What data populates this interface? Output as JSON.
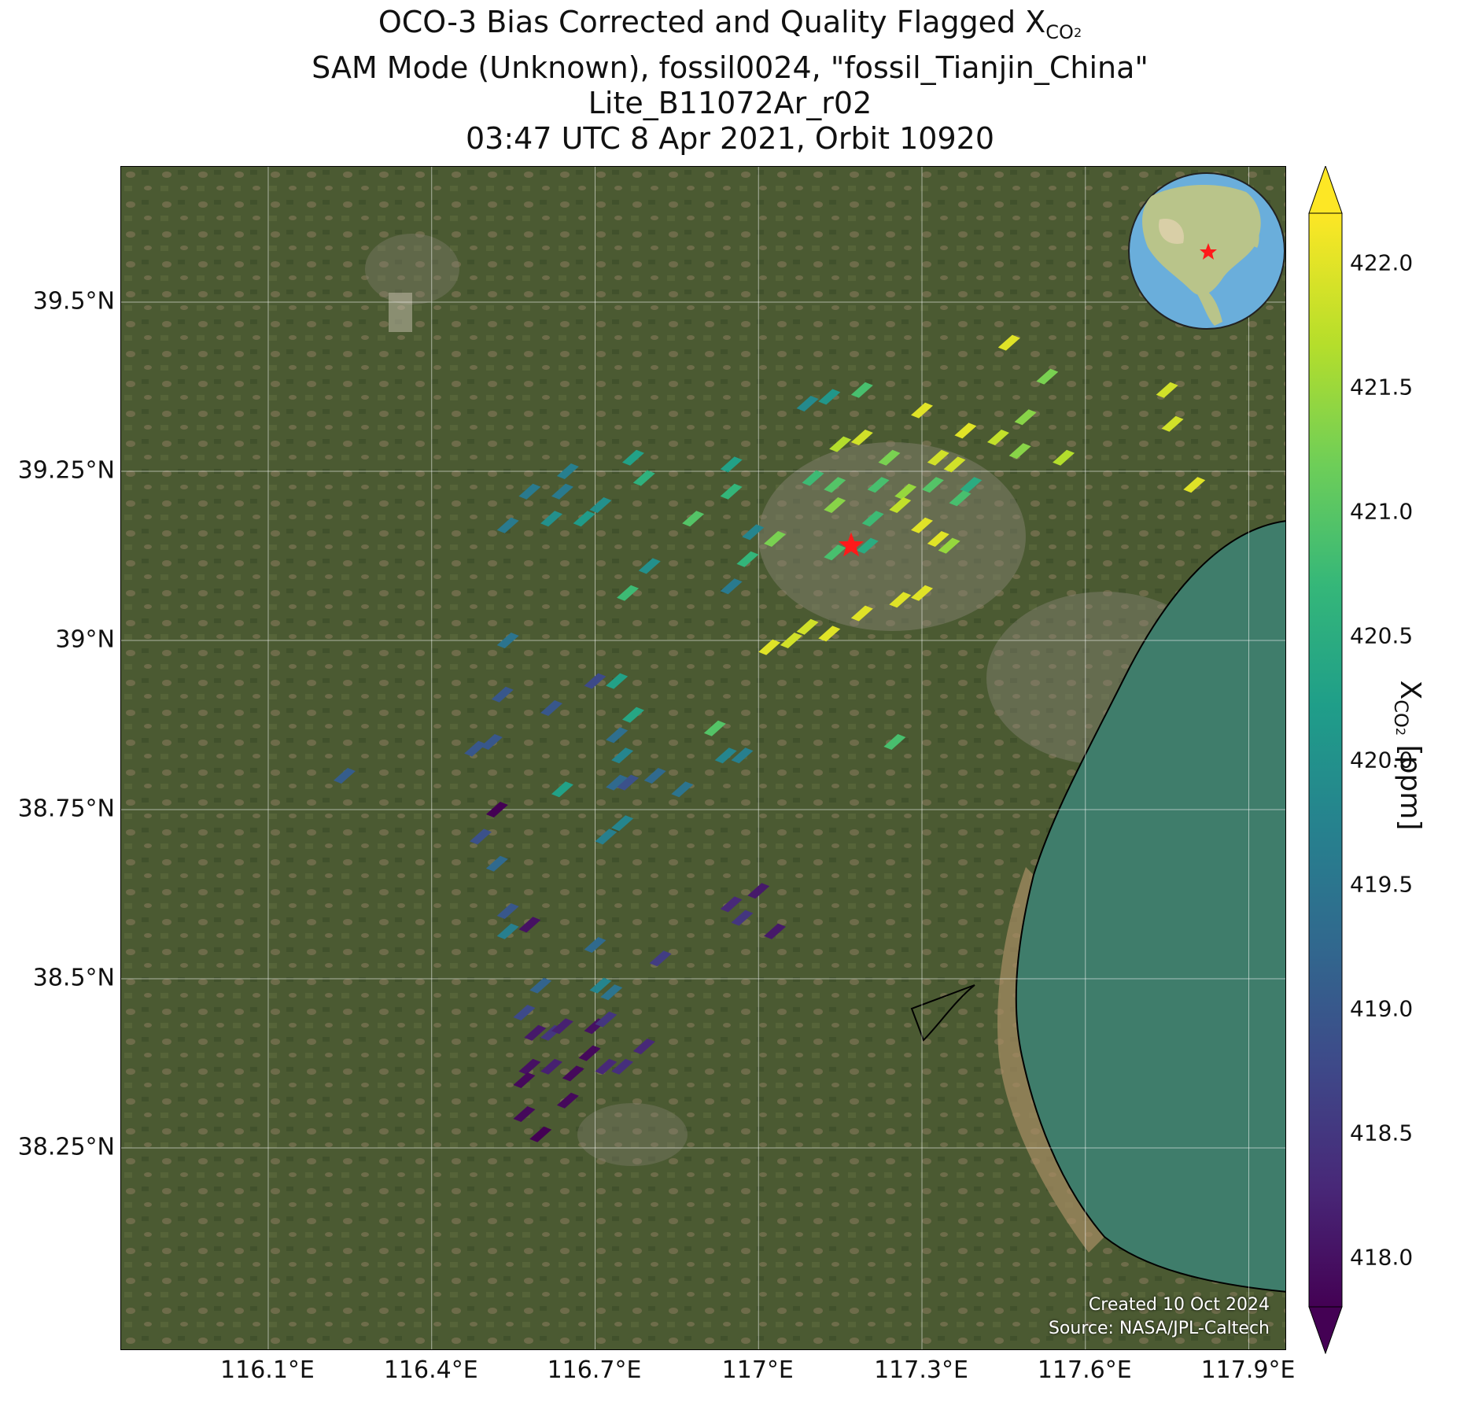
{
  "title": {
    "line1_prefix": "OCO-3 Bias Corrected and Quality Flagged X",
    "line1_sub": "CO",
    "line1_sub2": "2",
    "line2": "SAM Mode (Unknown), fossil0024, \"fossil_Tianjin_China\"",
    "line3": "Lite_B11072Ar_r02",
    "line4": "03:47 UTC 8 Apr 2021, Orbit 10920"
  },
  "map": {
    "lat_ticks": [
      "39.5°N",
      "39.25°N",
      "39°N",
      "38.75°N",
      "38.5°N",
      "38.25°N"
    ],
    "lon_ticks": [
      "116.1°E",
      "116.4°E",
      "116.7°E",
      "117°E",
      "117.3°E",
      "117.6°E",
      "117.9°E"
    ],
    "lat_tick_values": [
      39.5,
      39.25,
      39.0,
      38.75,
      38.5,
      38.25
    ],
    "lon_tick_values": [
      116.1,
      116.4,
      116.7,
      117.0,
      117.3,
      117.6,
      117.9
    ],
    "extent": {
      "lon_min": 115.83,
      "lon_max": 117.97,
      "lat_min": 37.95,
      "lat_max": 39.7
    },
    "target_marker": {
      "lon": 117.17,
      "lat": 39.14,
      "color": "#ff1a1a",
      "icon": "star-icon"
    },
    "credit_line1": "Created 10 Oct 2024",
    "credit_line2": "Source: NASA/JPL-Caltech",
    "background": "satellite imagery (land #4a5a33, sea #3f7d6b)"
  },
  "colorbar": {
    "label_prefix": "X",
    "label_sub": "CO",
    "label_sub2": "2",
    "label_suffix": " [ppm]",
    "colormap": "viridis",
    "vmin": 417.8,
    "vmax": 422.2,
    "extend": "both",
    "ticks": [
      "418.0",
      "418.5",
      "419.0",
      "419.5",
      "420.0",
      "420.5",
      "421.0",
      "421.5",
      "422.0"
    ],
    "tick_values": [
      418.0,
      418.5,
      419.0,
      419.5,
      420.0,
      420.5,
      421.0,
      421.5,
      422.0
    ]
  },
  "chart_data": {
    "type": "scatter",
    "title": "OCO-3 Bias Corrected and Quality Flagged XCO2",
    "xlabel": "",
    "ylabel": "",
    "colorbar_label": "XCO2 [ppm]",
    "points": [
      {
        "lon": 117.46,
        "lat": 39.44,
        "xco2": 422.0
      },
      {
        "lon": 117.53,
        "lat": 39.39,
        "xco2": 421.3
      },
      {
        "lon": 117.3,
        "lat": 39.34,
        "xco2": 422.0
      },
      {
        "lon": 117.49,
        "lat": 39.33,
        "xco2": 421.4
      },
      {
        "lon": 117.75,
        "lat": 39.37,
        "xco2": 421.9
      },
      {
        "lon": 117.19,
        "lat": 39.37,
        "xco2": 420.9
      },
      {
        "lon": 117.13,
        "lat": 39.36,
        "xco2": 420.1
      },
      {
        "lon": 117.09,
        "lat": 39.35,
        "xco2": 419.9
      },
      {
        "lon": 117.38,
        "lat": 39.31,
        "xco2": 422.0
      },
      {
        "lon": 117.44,
        "lat": 39.3,
        "xco2": 421.8
      },
      {
        "lon": 117.48,
        "lat": 39.28,
        "xco2": 421.4
      },
      {
        "lon": 117.56,
        "lat": 39.27,
        "xco2": 421.7
      },
      {
        "lon": 117.76,
        "lat": 39.32,
        "xco2": 421.9
      },
      {
        "lon": 117.8,
        "lat": 39.23,
        "xco2": 422.0
      },
      {
        "lon": 117.15,
        "lat": 39.29,
        "xco2": 421.7
      },
      {
        "lon": 117.19,
        "lat": 39.3,
        "xco2": 421.9
      },
      {
        "lon": 117.24,
        "lat": 39.27,
        "xco2": 421.3
      },
      {
        "lon": 117.33,
        "lat": 39.27,
        "xco2": 421.9
      },
      {
        "lon": 117.36,
        "lat": 39.26,
        "xco2": 421.9
      },
      {
        "lon": 117.39,
        "lat": 39.23,
        "xco2": 420.5
      },
      {
        "lon": 117.37,
        "lat": 39.21,
        "xco2": 420.9
      },
      {
        "lon": 117.32,
        "lat": 39.23,
        "xco2": 421.0
      },
      {
        "lon": 117.27,
        "lat": 39.22,
        "xco2": 421.5
      },
      {
        "lon": 117.22,
        "lat": 39.23,
        "xco2": 420.9
      },
      {
        "lon": 117.14,
        "lat": 39.23,
        "xco2": 421.0
      },
      {
        "lon": 117.1,
        "lat": 39.24,
        "xco2": 420.8
      },
      {
        "lon": 117.14,
        "lat": 39.2,
        "xco2": 421.4
      },
      {
        "lon": 117.21,
        "lat": 39.18,
        "xco2": 420.8
      },
      {
        "lon": 117.26,
        "lat": 39.2,
        "xco2": 421.8
      },
      {
        "lon": 117.3,
        "lat": 39.17,
        "xco2": 422.0
      },
      {
        "lon": 117.33,
        "lat": 39.15,
        "xco2": 422.0
      },
      {
        "lon": 117.35,
        "lat": 39.14,
        "xco2": 421.5
      },
      {
        "lon": 117.2,
        "lat": 39.14,
        "xco2": 420.5
      },
      {
        "lon": 117.14,
        "lat": 39.13,
        "xco2": 420.9
      },
      {
        "lon": 117.03,
        "lat": 39.15,
        "xco2": 421.3
      },
      {
        "lon": 116.99,
        "lat": 39.16,
        "xco2": 419.8
      },
      {
        "lon": 116.98,
        "lat": 39.12,
        "xco2": 420.7
      },
      {
        "lon": 116.95,
        "lat": 39.08,
        "xco2": 419.6
      },
      {
        "lon": 116.95,
        "lat": 39.26,
        "xco2": 420.3
      },
      {
        "lon": 116.95,
        "lat": 39.22,
        "xco2": 420.7
      },
      {
        "lon": 116.88,
        "lat": 39.18,
        "xco2": 421.0
      },
      {
        "lon": 116.77,
        "lat": 39.27,
        "xco2": 420.3
      },
      {
        "lon": 116.79,
        "lat": 39.24,
        "xco2": 420.6
      },
      {
        "lon": 116.64,
        "lat": 39.22,
        "xco2": 419.6
      },
      {
        "lon": 116.58,
        "lat": 39.22,
        "xco2": 419.6
      },
      {
        "lon": 116.65,
        "lat": 39.25,
        "xco2": 419.7
      },
      {
        "lon": 116.71,
        "lat": 39.2,
        "xco2": 420.0
      },
      {
        "lon": 116.68,
        "lat": 39.18,
        "xco2": 420.2
      },
      {
        "lon": 116.62,
        "lat": 39.18,
        "xco2": 420.0
      },
      {
        "lon": 116.54,
        "lat": 39.17,
        "xco2": 419.6
      },
      {
        "lon": 116.8,
        "lat": 39.11,
        "xco2": 420.0
      },
      {
        "lon": 116.76,
        "lat": 39.07,
        "xco2": 420.8
      },
      {
        "lon": 117.02,
        "lat": 38.99,
        "xco2": 422.0
      },
      {
        "lon": 117.06,
        "lat": 39.0,
        "xco2": 421.9
      },
      {
        "lon": 117.09,
        "lat": 39.02,
        "xco2": 421.9
      },
      {
        "lon": 117.13,
        "lat": 39.01,
        "xco2": 422.0
      },
      {
        "lon": 117.19,
        "lat": 39.04,
        "xco2": 422.0
      },
      {
        "lon": 117.26,
        "lat": 39.06,
        "xco2": 422.0
      },
      {
        "lon": 117.3,
        "lat": 39.07,
        "xco2": 422.0
      },
      {
        "lon": 116.54,
        "lat": 39.0,
        "xco2": 419.5
      },
      {
        "lon": 116.53,
        "lat": 38.92,
        "xco2": 419.0
      },
      {
        "lon": 116.62,
        "lat": 38.9,
        "xco2": 419.0
      },
      {
        "lon": 116.7,
        "lat": 38.94,
        "xco2": 418.8
      },
      {
        "lon": 116.74,
        "lat": 38.94,
        "xco2": 420.3
      },
      {
        "lon": 116.77,
        "lat": 38.89,
        "xco2": 420.4
      },
      {
        "lon": 116.74,
        "lat": 38.86,
        "xco2": 419.4
      },
      {
        "lon": 116.75,
        "lat": 38.83,
        "xco2": 419.8
      },
      {
        "lon": 116.74,
        "lat": 38.79,
        "xco2": 419.3
      },
      {
        "lon": 116.76,
        "lat": 38.79,
        "xco2": 418.9
      },
      {
        "lon": 116.81,
        "lat": 38.8,
        "xco2": 419.3
      },
      {
        "lon": 116.86,
        "lat": 38.78,
        "xco2": 419.5
      },
      {
        "lon": 116.92,
        "lat": 38.87,
        "xco2": 421.0
      },
      {
        "lon": 116.94,
        "lat": 38.83,
        "xco2": 419.8
      },
      {
        "lon": 116.97,
        "lat": 38.83,
        "xco2": 419.7
      },
      {
        "lon": 117.25,
        "lat": 38.85,
        "xco2": 420.9
      },
      {
        "lon": 116.64,
        "lat": 38.78,
        "xco2": 420.3
      },
      {
        "lon": 116.48,
        "lat": 38.84,
        "xco2": 419.0
      },
      {
        "lon": 116.51,
        "lat": 38.85,
        "xco2": 419.0
      },
      {
        "lon": 116.24,
        "lat": 38.8,
        "xco2": 419.1
      },
      {
        "lon": 116.52,
        "lat": 38.75,
        "xco2": 417.8
      },
      {
        "lon": 116.49,
        "lat": 38.71,
        "xco2": 418.9
      },
      {
        "lon": 116.52,
        "lat": 38.67,
        "xco2": 419.3
      },
      {
        "lon": 116.54,
        "lat": 38.6,
        "xco2": 419.0
      },
      {
        "lon": 116.58,
        "lat": 38.58,
        "xco2": 418.0
      },
      {
        "lon": 116.54,
        "lat": 38.57,
        "xco2": 419.7
      },
      {
        "lon": 116.72,
        "lat": 38.71,
        "xco2": 419.7
      },
      {
        "lon": 116.75,
        "lat": 38.73,
        "xco2": 419.8
      },
      {
        "lon": 116.95,
        "lat": 38.61,
        "xco2": 418.3
      },
      {
        "lon": 116.97,
        "lat": 38.59,
        "xco2": 418.5
      },
      {
        "lon": 117.0,
        "lat": 38.63,
        "xco2": 418.1
      },
      {
        "lon": 117.03,
        "lat": 38.57,
        "xco2": 418.1
      },
      {
        "lon": 116.7,
        "lat": 38.55,
        "xco2": 419.3
      },
      {
        "lon": 116.71,
        "lat": 38.49,
        "xco2": 419.8
      },
      {
        "lon": 116.73,
        "lat": 38.48,
        "xco2": 419.5
      },
      {
        "lon": 116.82,
        "lat": 38.53,
        "xco2": 418.6
      },
      {
        "lon": 116.6,
        "lat": 38.49,
        "xco2": 419.2
      },
      {
        "lon": 116.57,
        "lat": 38.45,
        "xco2": 418.8
      },
      {
        "lon": 116.59,
        "lat": 38.42,
        "xco2": 418.1
      },
      {
        "lon": 116.62,
        "lat": 38.42,
        "xco2": 418.5
      },
      {
        "lon": 116.64,
        "lat": 38.43,
        "xco2": 418.2
      },
      {
        "lon": 116.7,
        "lat": 38.43,
        "xco2": 418.0
      },
      {
        "lon": 116.72,
        "lat": 38.44,
        "xco2": 418.5
      },
      {
        "lon": 116.69,
        "lat": 38.39,
        "xco2": 417.9
      },
      {
        "lon": 116.58,
        "lat": 38.37,
        "xco2": 418.0
      },
      {
        "lon": 116.62,
        "lat": 38.37,
        "xco2": 418.2
      },
      {
        "lon": 116.66,
        "lat": 38.36,
        "xco2": 417.9
      },
      {
        "lon": 116.72,
        "lat": 38.37,
        "xco2": 418.3
      },
      {
        "lon": 116.75,
        "lat": 38.37,
        "xco2": 418.4
      },
      {
        "lon": 116.79,
        "lat": 38.4,
        "xco2": 418.3
      },
      {
        "lon": 116.57,
        "lat": 38.35,
        "xco2": 417.9
      },
      {
        "lon": 116.65,
        "lat": 38.32,
        "xco2": 417.9
      },
      {
        "lon": 116.57,
        "lat": 38.3,
        "xco2": 417.9
      },
      {
        "lon": 116.6,
        "lat": 38.27,
        "xco2": 417.8
      }
    ]
  }
}
